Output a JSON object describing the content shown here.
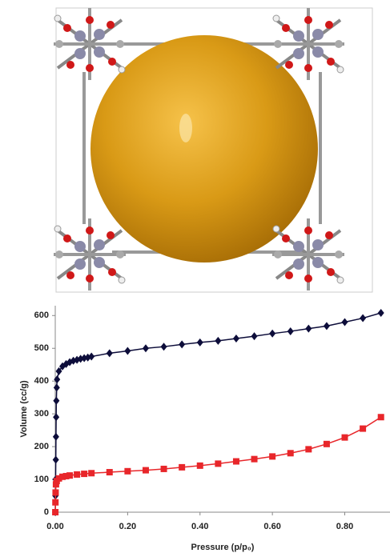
{
  "chart_data": {
    "type": "line",
    "xlabel": "Pressure (p/p₀)",
    "ylabel": "Volume (cc/g)",
    "xlim": [
      0,
      0.925
    ],
    "ylim": [
      0,
      630
    ],
    "xticks": [
      {
        "value": 0,
        "label": "0.00"
      },
      {
        "value": 0.2,
        "label": "0.20"
      },
      {
        "value": 0.4,
        "label": "0.40"
      },
      {
        "value": 0.6,
        "label": "0.60"
      },
      {
        "value": 0.8,
        "label": "0.80"
      }
    ],
    "yticks": [
      0,
      100,
      200,
      300,
      400,
      500,
      600
    ],
    "series": [
      {
        "color": "#0d0d3a",
        "marker": "diamond",
        "x": [
          0.0002,
          0.0005,
          0.001,
          0.0015,
          0.002,
          0.0025,
          0.003,
          0.004,
          0.005,
          0.01,
          0.02,
          0.03,
          0.04,
          0.05,
          0.06,
          0.07,
          0.08,
          0.09,
          0.1,
          0.15,
          0.2,
          0.25,
          0.3,
          0.35,
          0.4,
          0.45,
          0.5,
          0.55,
          0.6,
          0.65,
          0.7,
          0.75,
          0.8,
          0.85,
          0.9
        ],
        "values": [
          0,
          50,
          100,
          160,
          230,
          290,
          340,
          380,
          405,
          430,
          445,
          452,
          458,
          462,
          465,
          468,
          470,
          472,
          475,
          485,
          492,
          500,
          505,
          512,
          518,
          523,
          530,
          537,
          545,
          552,
          560,
          568,
          580,
          592,
          608
        ]
      },
      {
        "color": "#e8262a",
        "marker": "square",
        "x": [
          0.0002,
          0.0005,
          0.001,
          0.002,
          0.004,
          0.01,
          0.02,
          0.03,
          0.04,
          0.06,
          0.08,
          0.1,
          0.15,
          0.2,
          0.25,
          0.3,
          0.35,
          0.4,
          0.45,
          0.5,
          0.55,
          0.6,
          0.65,
          0.7,
          0.75,
          0.8,
          0.85,
          0.9
        ],
        "values": [
          0,
          30,
          60,
          85,
          95,
          103,
          108,
          110,
          112,
          115,
          117,
          119,
          122,
          125,
          128,
          132,
          137,
          142,
          148,
          155,
          162,
          170,
          180,
          192,
          208,
          228,
          255,
          290
        ]
      }
    ]
  }
}
